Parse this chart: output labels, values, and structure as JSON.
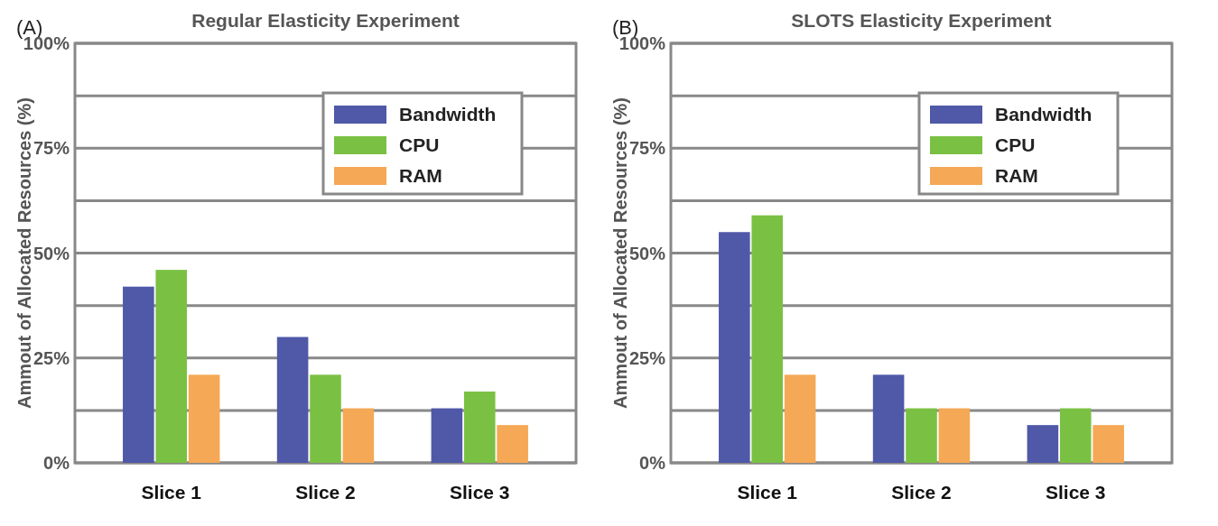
{
  "chart_data": [
    {
      "type": "bar",
      "title": "Regular Elasticity Experiment",
      "ylabel": "Ammout of Allocated Resources (%)",
      "annotations": [
        "(A)"
      ],
      "categories": [
        "Slice 1",
        "Slice 2",
        "Slice 3"
      ],
      "series": [
        {
          "name": "Bandwidth",
          "color": "#5058a8",
          "values": [
            42,
            30,
            13
          ]
        },
        {
          "name": "CPU",
          "color": "#7ac143",
          "values": [
            46,
            21,
            17
          ]
        },
        {
          "name": "RAM",
          "color": "#f5a855",
          "values": [
            21,
            13,
            9
          ]
        }
      ],
      "ylim": [
        0,
        100
      ],
      "yticks": [
        {
          "value": 0,
          "label": "0%"
        },
        {
          "value": 12.5,
          "label": null
        },
        {
          "value": 25,
          "label": "25%"
        },
        {
          "value": 37.5,
          "label": null
        },
        {
          "value": 50,
          "label": "50%"
        },
        {
          "value": 62.5,
          "label": null
        },
        {
          "value": 75,
          "label": "75%"
        },
        {
          "value": 87.5,
          "label": null
        },
        {
          "value": 100,
          "label": "100%"
        }
      ],
      "grid": "y",
      "legend": "top right"
    },
    {
      "type": "bar",
      "title": "SLOTS Elasticity Experiment",
      "ylabel": "Ammout of Allocated Resources (%)",
      "annotations": [
        "(B)"
      ],
      "categories": [
        "Slice 1",
        "Slice 2",
        "Slice 3"
      ],
      "series": [
        {
          "name": "Bandwidth",
          "color": "#5058a8",
          "values": [
            55,
            21,
            9
          ]
        },
        {
          "name": "CPU",
          "color": "#7ac143",
          "values": [
            59,
            13,
            13
          ]
        },
        {
          "name": "RAM",
          "color": "#f5a855",
          "values": [
            21,
            13,
            9
          ]
        }
      ],
      "ylim": [
        0,
        100
      ],
      "yticks": [
        {
          "value": 0,
          "label": "0%"
        },
        {
          "value": 12.5,
          "label": null
        },
        {
          "value": 25,
          "label": "25%"
        },
        {
          "value": 37.5,
          "label": null
        },
        {
          "value": 50,
          "label": "50%"
        },
        {
          "value": 62.5,
          "label": null
        },
        {
          "value": 75,
          "label": "75%"
        },
        {
          "value": 87.5,
          "label": null
        },
        {
          "value": 100,
          "label": "100%"
        }
      ],
      "grid": "y",
      "legend": "top right"
    }
  ]
}
